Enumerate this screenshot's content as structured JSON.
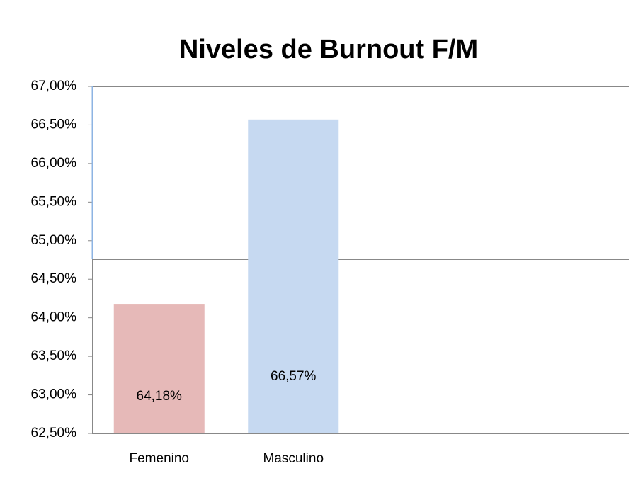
{
  "chart_data": {
    "type": "bar",
    "title": "Niveles de Burnout F/M",
    "categories": [
      "Femenino",
      "Masculino"
    ],
    "values": [
      64.18,
      66.57
    ],
    "value_labels": [
      "64,18%",
      "66,57%"
    ],
    "colors": [
      "#e6b9b8",
      "#c6d9f1"
    ],
    "ylim": [
      62.5,
      67
    ],
    "yticks": [
      {
        "value": 62.5,
        "label": "62,50%"
      },
      {
        "value": 63,
        "label": "63,00%"
      },
      {
        "value": 63.5,
        "label": "63,50%"
      },
      {
        "value": 64,
        "label": "64,00%"
      },
      {
        "value": 64.5,
        "label": "64,50%"
      },
      {
        "value": 65,
        "label": "65,00%"
      },
      {
        "value": 65.5,
        "label": "65,50%"
      },
      {
        "value": 66,
        "label": "66,00%"
      },
      {
        "value": 66.5,
        "label": "66,50%"
      },
      {
        "value": 67,
        "label": "67,00%"
      }
    ]
  }
}
